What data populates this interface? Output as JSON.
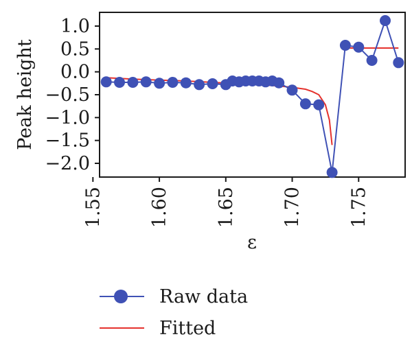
{
  "chart_data": {
    "type": "line",
    "title": "",
    "xlabel": "ε",
    "ylabel": "Peak height",
    "xlim": [
      1.555,
      1.785
    ],
    "ylim": [
      -2.3,
      1.3
    ],
    "x_ticks": [
      1.55,
      1.6,
      1.65,
      1.7,
      1.75
    ],
    "x_tick_labels": [
      "1.55",
      "1.60",
      "1.65",
      "1.70",
      "1.75"
    ],
    "y_ticks": [
      1.0,
      0.5,
      0.0,
      -0.5,
      -1.0,
      -1.5,
      -2.0
    ],
    "y_tick_labels": [
      "1.0",
      "0.5",
      "0.0",
      "−0.5",
      "−1.0",
      "−1.5",
      "−2.0"
    ],
    "grid": false,
    "legend_position": "bottom",
    "series": [
      {
        "name": "Raw data",
        "color": "#3f51b5",
        "marker": "circle",
        "x": [
          1.56,
          1.57,
          1.58,
          1.59,
          1.6,
          1.61,
          1.62,
          1.63,
          1.64,
          1.65,
          1.655,
          1.66,
          1.665,
          1.67,
          1.675,
          1.68,
          1.685,
          1.69,
          1.7,
          1.71,
          1.72,
          1.73,
          1.74,
          1.75,
          1.76,
          1.77,
          1.78
        ],
        "y": [
          -0.22,
          -0.23,
          -0.23,
          -0.22,
          -0.25,
          -0.23,
          -0.24,
          -0.28,
          -0.26,
          -0.28,
          -0.2,
          -0.22,
          -0.2,
          -0.2,
          -0.2,
          -0.22,
          -0.2,
          -0.24,
          -0.4,
          -0.7,
          -0.72,
          -2.2,
          0.58,
          0.54,
          0.25,
          1.12,
          0.2
        ]
      },
      {
        "name": "Fitted",
        "color": "#e5322d",
        "marker": "none",
        "segments": [
          {
            "x": [
              1.56,
              1.58,
              1.6,
              1.62,
              1.64,
              1.66,
              1.68,
              1.69,
              1.7,
              1.71,
              1.715,
              1.72,
              1.725,
              1.728,
              1.73
            ],
            "y": [
              -0.13,
              -0.16,
              -0.18,
              -0.2,
              -0.23,
              -0.26,
              -0.29,
              -0.31,
              -0.34,
              -0.38,
              -0.43,
              -0.5,
              -0.72,
              -1.05,
              -1.6
            ]
          },
          {
            "x": [
              1.74,
              1.75,
              1.76,
              1.77,
              1.78
            ],
            "y": [
              0.52,
              0.52,
              0.52,
              0.52,
              0.52
            ]
          }
        ]
      }
    ]
  }
}
